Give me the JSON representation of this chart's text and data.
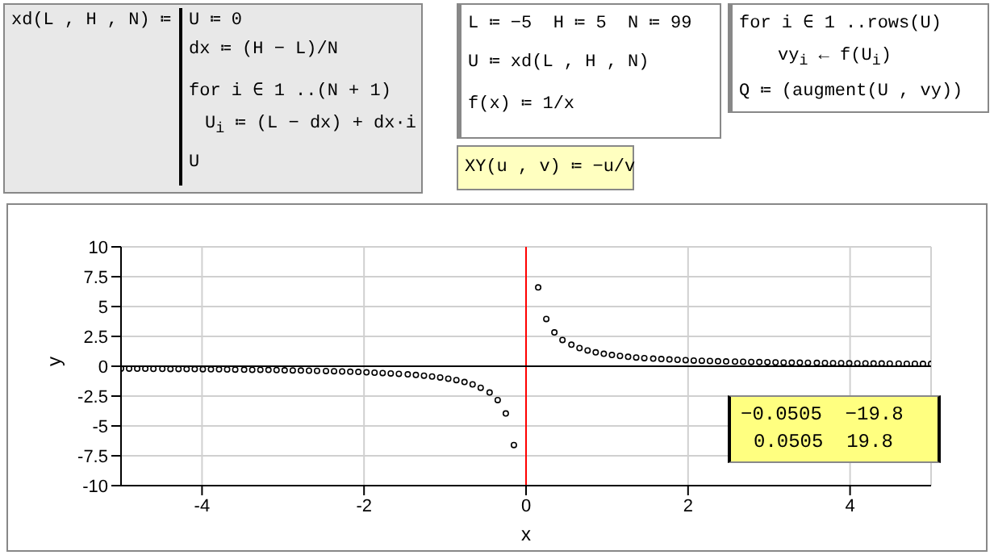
{
  "chart_data": {
    "type": "scatter",
    "xlabel": "x",
    "ylabel": "y",
    "xlim": [
      -5,
      5
    ],
    "xticks": [
      -4,
      -2,
      0,
      2,
      4
    ],
    "ylim": [
      -10,
      10
    ],
    "yticks": [
      -10,
      -7.5,
      -5,
      -2.5,
      0,
      2.5,
      5,
      7.5,
      10
    ],
    "grid": true,
    "marker": "circle",
    "ref_lines": [
      {
        "axis": "x",
        "value": 0,
        "color": "#ff0000"
      },
      {
        "axis": "y",
        "value": 0,
        "color": "#000000"
      }
    ],
    "x": [
      -5.0,
      -4.9,
      -4.8,
      -4.7,
      -4.6,
      -4.49,
      -4.39,
      -4.29,
      -4.19,
      -4.09,
      -3.99,
      -3.89,
      -3.79,
      -3.69,
      -3.59,
      -3.48,
      -3.38,
      -3.28,
      -3.18,
      -3.08,
      -2.98,
      -2.88,
      -2.78,
      -2.68,
      -2.58,
      -2.47,
      -2.37,
      -2.27,
      -2.17,
      -2.07,
      -1.97,
      -1.87,
      -1.77,
      -1.67,
      -1.57,
      -1.46,
      -1.36,
      -1.26,
      -1.16,
      -1.06,
      -0.96,
      -0.86,
      -0.76,
      -0.66,
      -0.56,
      -0.45,
      -0.35,
      -0.25,
      -0.15,
      -0.05,
      0.05,
      0.15,
      0.25,
      0.35,
      0.45,
      0.56,
      0.66,
      0.76,
      0.86,
      0.96,
      1.06,
      1.16,
      1.26,
      1.36,
      1.46,
      1.57,
      1.67,
      1.77,
      1.87,
      1.97,
      2.07,
      2.17,
      2.27,
      2.37,
      2.47,
      2.58,
      2.68,
      2.78,
      2.88,
      2.98,
      3.08,
      3.18,
      3.28,
      3.38,
      3.48,
      3.59,
      3.69,
      3.79,
      3.89,
      3.99,
      4.09,
      4.19,
      4.29,
      4.39,
      4.49,
      4.6,
      4.7,
      4.8,
      4.9,
      5.0
    ],
    "series": [
      {
        "color": "#000000",
        "values": [
          -0.2,
          -0.2,
          -0.21,
          -0.21,
          -0.22,
          -0.22,
          -0.23,
          -0.23,
          -0.24,
          -0.24,
          -0.25,
          -0.26,
          -0.26,
          -0.27,
          -0.28,
          -0.29,
          -0.3,
          -0.3,
          -0.31,
          -0.32,
          -0.34,
          -0.35,
          -0.36,
          -0.37,
          -0.39,
          -0.4,
          -0.42,
          -0.44,
          -0.46,
          -0.48,
          -0.51,
          -0.54,
          -0.57,
          -0.6,
          -0.64,
          -0.68,
          -0.73,
          -0.79,
          -0.86,
          -0.94,
          -1.04,
          -1.16,
          -1.32,
          -1.52,
          -1.8,
          -2.2,
          -2.83,
          -3.96,
          -6.6,
          null,
          null,
          6.6,
          3.96,
          2.83,
          2.2,
          1.8,
          1.52,
          1.32,
          1.16,
          1.04,
          0.94,
          0.86,
          0.79,
          0.73,
          0.68,
          0.64,
          0.6,
          0.57,
          0.54,
          0.51,
          0.48,
          0.46,
          0.44,
          0.42,
          0.4,
          0.39,
          0.37,
          0.36,
          0.35,
          0.34,
          0.32,
          0.31,
          0.3,
          0.3,
          0.29,
          0.28,
          0.27,
          0.26,
          0.26,
          0.25,
          0.24,
          0.24,
          0.23,
          0.23,
          0.22,
          0.22,
          0.21,
          0.21,
          0.2,
          0.2
        ]
      }
    ],
    "annotations": [
      "xd(L , H , N) ≔",
      "U ≔ 0",
      "dx ≔ (H − L)/N",
      "for i ∈ 1 ..(N + 1)",
      "U$_{i}$ ≔ (L − dx) + dx·i",
      "U",
      "L ≔ −5  H ≔ 5  N ≔ 99",
      "U ≔ xd(L , H , N)",
      "f(x) ≔ 1/x",
      "XY(u , v) ≔ −u/v",
      "for i ∈ 1 ..rows(U)",
      "vy$_{i}$ ← f(U$_{i}$)",
      "Q ≔ (augment(U , vy))",
      "−0.0505  −19.8",
      "0.0505  19.8"
    ]
  }
}
